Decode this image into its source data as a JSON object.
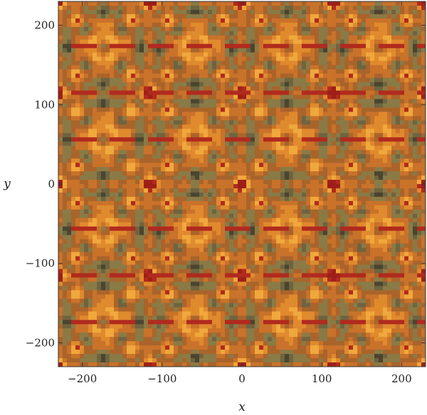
{
  "chart_data": {
    "type": "heatmap",
    "title": "",
    "xlabel": "x",
    "ylabel": "y",
    "xlim": [
      -230,
      230
    ],
    "ylim": [
      -230,
      230
    ],
    "x_ticks": [
      -200,
      -100,
      0,
      100,
      200
    ],
    "y_ticks": [
      -200,
      -100,
      0,
      100,
      200
    ],
    "x_tick_labels": [
      "−200",
      "−100",
      "0",
      "100",
      "200"
    ],
    "y_tick_labels": [
      "−200",
      "−100",
      "0",
      "100",
      "200"
    ],
    "grid": false,
    "legend": "none",
    "description_of_field": "symmetric periodic contour pattern",
    "palette": [
      "#1e1e14",
      "#4a4530",
      "#6e6440",
      "#8a7a46",
      "#a9642b",
      "#c9722a",
      "#e08a2e",
      "#f0a83c",
      "#b12a1e",
      "#9e1f18"
    ]
  }
}
